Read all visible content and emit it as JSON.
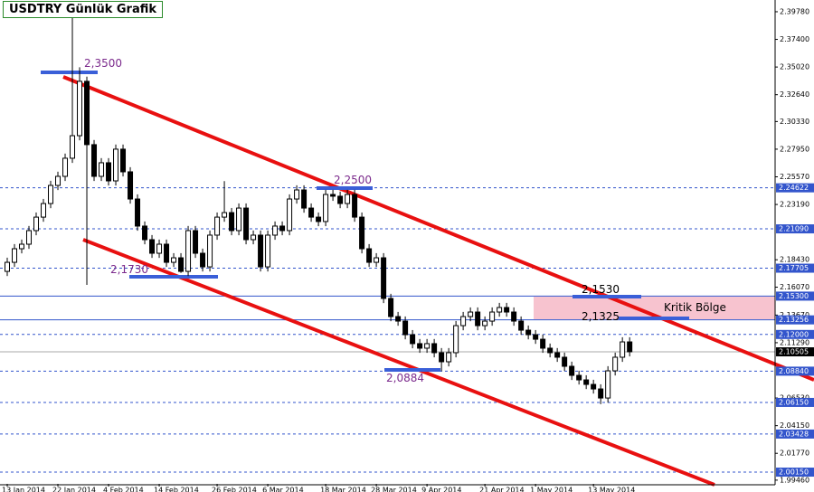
{
  "chart_data": {
    "type": "candlestick",
    "title": "USDTRY Günlük Grafik",
    "open": [
      2.1743,
      2.1821,
      2.1938,
      2.1977,
      2.2094,
      2.221,
      2.2327,
      2.2483,
      2.2561,
      2.2717,
      2.2911,
      2.3379,
      2.2834,
      2.2561,
      2.2678,
      2.2522,
      2.2795,
      2.26,
      2.2366,
      2.2133,
      2.2016,
      2.1899,
      2.1977,
      2.1821,
      2.186,
      2.1743,
      2.2094,
      2.1899,
      2.1782,
      2.2055,
      2.221,
      2.2249,
      2.2094,
      2.2288,
      2.2016,
      2.2055,
      2.1782,
      2.2055,
      2.2133,
      2.2094,
      2.2366,
      2.2444,
      2.2288,
      2.221,
      2.2172,
      2.2405,
      2.239,
      2.2327,
      2.2405,
      2.221,
      2.1938,
      2.1821,
      2.186,
      2.151,
      2.1354,
      2.1315,
      2.1198,
      2.1121,
      2.1082,
      2.1121,
      2.1043,
      2.0965,
      2.1043,
      2.1276,
      2.1354,
      2.1393,
      2.1276,
      2.1315,
      2.1393,
      2.1432,
      2.1393,
      2.1315,
      2.1237,
      2.1198,
      2.1159,
      2.1082,
      2.1043,
      2.1004,
      2.0926,
      2.0848,
      2.0809,
      2.077,
      2.0731,
      2.0653,
      2.0887,
      2.1004,
      2.1136
    ],
    "high": [
      2.1861,
      2.1978,
      2.2017,
      2.2134,
      2.225,
      2.2367,
      2.2523,
      2.2601,
      2.2757,
      2.405,
      2.35,
      2.3419,
      2.2874,
      2.2718,
      2.2718,
      2.2835,
      2.2835,
      2.264,
      2.2406,
      2.2173,
      2.2056,
      2.2017,
      2.2017,
      2.19,
      2.19,
      2.2134,
      2.2134,
      2.1939,
      2.2095,
      2.225,
      2.252,
      2.2289,
      2.2328,
      2.2328,
      2.2095,
      2.2095,
      2.2095,
      2.2173,
      2.2173,
      2.2406,
      2.2484,
      2.2484,
      2.2328,
      2.225,
      2.2445,
      2.2445,
      2.243,
      2.2445,
      2.2445,
      2.225,
      2.1978,
      2.19,
      2.19,
      2.155,
      2.1394,
      2.1355,
      2.1238,
      2.1161,
      2.1161,
      2.1161,
      2.1083,
      2.1083,
      2.1316,
      2.1394,
      2.1433,
      2.1433,
      2.1355,
      2.1433,
      2.1472,
      2.1472,
      2.1433,
      2.1355,
      2.1277,
      2.1238,
      2.1199,
      2.1122,
      2.1083,
      2.1044,
      2.0966,
      2.0888,
      2.0849,
      2.081,
      2.0771,
      2.0927,
      2.1044,
      2.1176,
      2.1176
    ],
    "low": [
      2.1703,
      2.1781,
      2.1898,
      2.1937,
      2.2054,
      2.217,
      2.2287,
      2.2443,
      2.2521,
      2.2677,
      2.2871,
      2.1627,
      2.2521,
      2.2521,
      2.2482,
      2.2482,
      2.256,
      2.2326,
      2.2093,
      2.1976,
      2.1859,
      2.1859,
      2.1781,
      2.1781,
      2.173,
      2.1703,
      2.1859,
      2.1742,
      2.1742,
      2.2015,
      2.217,
      2.2054,
      2.2054,
      2.1976,
      2.1976,
      2.1742,
      2.1742,
      2.2015,
      2.2054,
      2.2054,
      2.2326,
      2.2248,
      2.217,
      2.2132,
      2.2132,
      2.235,
      2.2287,
      2.2287,
      2.217,
      2.1898,
      2.1781,
      2.1781,
      2.147,
      2.1314,
      2.1275,
      2.1158,
      2.1081,
      2.1042,
      2.1042,
      2.1003,
      2.0884,
      2.0925,
      2.1003,
      2.1236,
      2.1314,
      2.1236,
      2.1236,
      2.1275,
      2.1353,
      2.1353,
      2.1275,
      2.1197,
      2.1158,
      2.1119,
      2.1042,
      2.1003,
      2.0964,
      2.0886,
      2.0808,
      2.0769,
      2.073,
      2.0691,
      2.06,
      2.0613,
      2.0847,
      2.0964,
      2.1011
    ],
    "close": [
      2.1821,
      2.1938,
      2.1977,
      2.2094,
      2.221,
      2.2327,
      2.2483,
      2.2561,
      2.2717,
      2.2911,
      2.3379,
      2.2834,
      2.2561,
      2.2678,
      2.2522,
      2.2795,
      2.26,
      2.2366,
      2.2133,
      2.2016,
      2.1899,
      2.1977,
      2.1821,
      2.186,
      2.1743,
      2.2094,
      2.1899,
      2.1782,
      2.2055,
      2.221,
      2.2249,
      2.2094,
      2.2288,
      2.2016,
      2.2055,
      2.1782,
      2.2055,
      2.2133,
      2.2094,
      2.2366,
      2.2444,
      2.2288,
      2.221,
      2.2172,
      2.2405,
      2.239,
      2.2327,
      2.2405,
      2.221,
      2.1938,
      2.1821,
      2.186,
      2.151,
      2.1354,
      2.1315,
      2.1198,
      2.1121,
      2.1082,
      2.1121,
      2.1043,
      2.0965,
      2.1043,
      2.1276,
      2.1354,
      2.1393,
      2.1276,
      2.1315,
      2.1393,
      2.1432,
      2.1393,
      2.1315,
      2.1237,
      2.1198,
      2.1159,
      2.1082,
      2.1043,
      2.1004,
      2.0926,
      2.0848,
      2.0809,
      2.077,
      2.0731,
      2.0653,
      2.0887,
      2.1004,
      2.1136,
      2.1051
    ],
    "xlim": [
      -1,
      106.1
    ],
    "xticks": [
      {
        "value": 0,
        "label": "13 Jan 2014"
      },
      {
        "value": 7,
        "label": "22 Jan 2014"
      },
      {
        "value": 14,
        "label": "4 Feb 2014"
      },
      {
        "value": 21,
        "label": "14 Feb 2014"
      },
      {
        "value": 29,
        "label": "26 Feb 2014"
      },
      {
        "value": 36,
        "label": "6 Mar 2014"
      },
      {
        "value": 44,
        "label": "18 Mar 2014"
      },
      {
        "value": 51,
        "label": "28 Mar 2014"
      },
      {
        "value": 58,
        "label": "9 Apr 2014"
      },
      {
        "value": 66,
        "label": "21 Apr 2014"
      },
      {
        "value": 73,
        "label": "1 May 2014"
      },
      {
        "value": 81,
        "label": "13 May 2014"
      }
    ],
    "ylim": [
      1.9914,
      2.4079
    ],
    "yticks": [
      {
        "value": 2.3978,
        "label": "2.39780"
      },
      {
        "value": 2.374,
        "label": "2.37400"
      },
      {
        "value": 2.3502,
        "label": "2.35020"
      },
      {
        "value": 2.3264,
        "label": "2.32640"
      },
      {
        "value": 2.3033,
        "label": "2.30330"
      },
      {
        "value": 2.2795,
        "label": "2.27950"
      },
      {
        "value": 2.2557,
        "label": "2.25570"
      },
      {
        "value": 2.2319,
        "label": "2.23190"
      },
      {
        "value": 2.1843,
        "label": "2.18430"
      },
      {
        "value": 2.1607,
        "label": "2.16070"
      },
      {
        "value": 2.1367,
        "label": "2.13670"
      },
      {
        "value": 2.1129,
        "label": "2.11290"
      },
      {
        "value": 2.0653,
        "label": "2.06530"
      },
      {
        "value": 2.0415,
        "label": "2.04150"
      },
      {
        "value": 2.0177,
        "label": "2.01770"
      },
      {
        "value": 1.9946,
        "label": "1.99460"
      }
    ],
    "levels": [
      {
        "value": 2.24622,
        "label": "2.24622",
        "style": "dashed"
      },
      {
        "value": 2.2109,
        "label": "2.21090",
        "style": "dashed"
      },
      {
        "value": 2.17705,
        "label": "2.17705",
        "style": "dashed"
      },
      {
        "value": 2.153,
        "label": "2.15300",
        "style": "solid"
      },
      {
        "value": 2.13256,
        "label": "2.13256",
        "style": "solid"
      },
      {
        "value": 2.12,
        "label": "2.12000",
        "style": "dashed"
      },
      {
        "value": 2.0884,
        "label": "2.08840",
        "style": "dashed"
      },
      {
        "value": 2.0615,
        "label": "2.06150",
        "style": "dashed"
      },
      {
        "value": 2.03428,
        "label": "2.03428",
        "style": "dashed"
      },
      {
        "value": 2.0015,
        "label": "2.00150",
        "style": "dashed"
      }
    ],
    "last_price": {
      "value": 2.10505,
      "label": "2.10505"
    },
    "level_color": "#3355cc",
    "annotations": [
      "2,3500",
      "2,2500",
      "2,1730",
      "2,0884",
      "2,1530",
      "2,1325",
      "Kritik Bölge"
    ]
  }
}
